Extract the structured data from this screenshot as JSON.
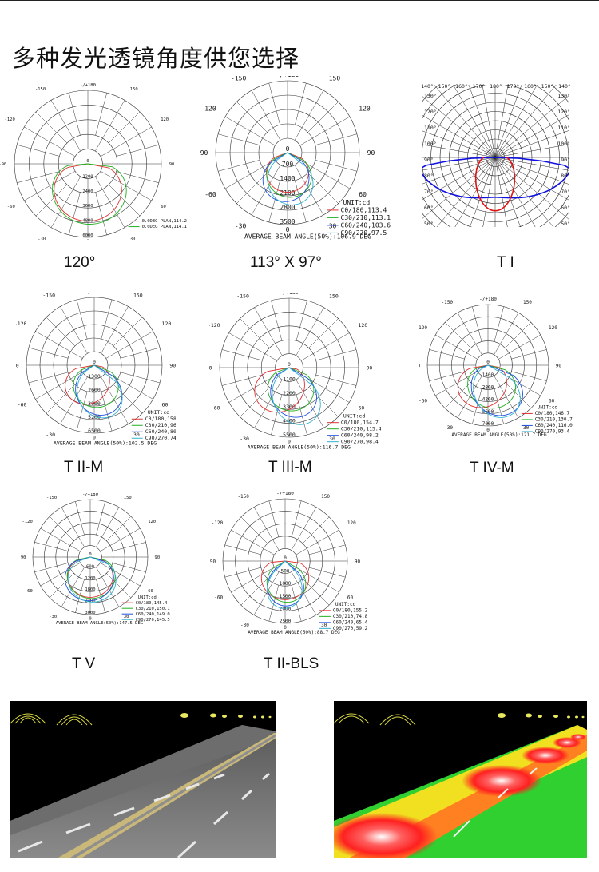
{
  "page": {
    "title": "多种发光透镜角度供您选择"
  },
  "common_angles": {
    "top": "-/+180",
    "l150": "-150",
    "r150": "150",
    "l120": "-120",
    "r120": "120",
    "l90": "-90",
    "r90": "90",
    "l60": "-60",
    "r60": "60",
    "l30": "-30",
    "r30": "30",
    "bottom": "0"
  },
  "diagrams": [
    {
      "caption": "120°",
      "unit": "",
      "rings": [
        "1200",
        "2400",
        "3600",
        "4800",
        "6000"
      ],
      "legend": [
        "0.0DEG PLAN,114.2",
        "0.0DEG PLAN,114.1"
      ],
      "beam_angle": "",
      "colors": [
        "#e03030",
        "#20b020"
      ]
    },
    {
      "caption": "113° X 97°",
      "unit": "UNIT:cd",
      "rings": [
        "700",
        "1400",
        "2100",
        "2800",
        "3500"
      ],
      "legend": [
        "C0/180,113.4",
        "C30/210,113.1",
        "C60/240,103.6",
        "C90/270,97.5"
      ],
      "beam_angle": "AVERAGE BEAM ANGLE(50%):106.9 DEG",
      "colors": [
        "#e03030",
        "#20b020",
        "#2050e0",
        "#30b0d0"
      ]
    },
    {
      "caption": "T I",
      "unit": "",
      "rings": [],
      "legend": [],
      "beam_angle": "",
      "colors": [
        "#e01010",
        "#1010e0"
      ],
      "degree_labels": {
        "top": [
          "140°",
          "150°",
          "160°",
          "170°",
          "180°",
          "170°",
          "160°",
          "150°",
          "140°"
        ],
        "left": [
          "130°",
          "120°",
          "110°",
          "100°",
          "90°",
          "80°",
          "70°",
          "60°",
          "50°"
        ],
        "right": [
          "130°",
          "120°",
          "110°",
          "100°",
          "90°",
          "80°",
          "70°",
          "60°",
          "50°"
        ]
      }
    },
    {
      "caption": "T II-M",
      "unit": "UNIT:cd",
      "rings": [
        "1300",
        "2600",
        "3900",
        "5200",
        "6500"
      ],
      "legend": [
        "C0/180,158.2",
        "C30/210,96.9",
        "C60/240,80.6",
        "C90/270,74.5"
      ],
      "beam_angle": "AVERAGE BEAM ANGLE(50%):102.5 DEG",
      "colors": [
        "#e03030",
        "#20b020",
        "#2050e0",
        "#30b0d0"
      ]
    },
    {
      "caption": "T III-M",
      "unit": "UNIT:cd",
      "rings": [
        "1100",
        "2200",
        "3300",
        "4400",
        "5500"
      ],
      "legend": [
        "C0/180,154.7",
        "C30/210,115.4",
        "C60/240,98.2",
        "C90/270,98.4"
      ],
      "beam_angle": "AVERAGE BEAM ANGLE(50%):116.7 DEG",
      "colors": [
        "#e03030",
        "#20b020",
        "#2050e0",
        "#30b0d0"
      ]
    },
    {
      "caption": "T IV-M",
      "unit": "UNIT:cd",
      "rings": [
        "1400",
        "2800",
        "4200",
        "5600",
        "7000"
      ],
      "legend": [
        "C0/180,146.7",
        "C30/210,130.7",
        "C60/240,116.0",
        "C90/270,93.4"
      ],
      "beam_angle": "AVERAGE BEAM ANGLE(50%):121.7 DEG",
      "colors": [
        "#e03030",
        "#20b020",
        "#2050e0",
        "#30b0d0"
      ]
    },
    {
      "caption": "T V",
      "unit": "UNIT:cd",
      "rings": [
        "600",
        "1200",
        "1800",
        "2400",
        "3000"
      ],
      "legend": [
        "C0/180,145.4",
        "C30/210,150.1",
        "C60/240,149.0",
        "C90/270,145.5"
      ],
      "beam_angle": "AVERAGE BEAM ANGLE(50%):147.5 DEG",
      "colors": [
        "#e03030",
        "#20b020",
        "#2050e0",
        "#30b0d0"
      ]
    },
    {
      "caption": "T II-BLS",
      "unit": "UNIT:cd",
      "rings": [
        "500",
        "1000",
        "1500",
        "2000",
        "2500"
      ],
      "legend": [
        "C0/180,155.2",
        "C30/210,74.8",
        "C60/240,65.4",
        "C90/270,59.2"
      ],
      "beam_angle": "AVERAGE BEAM ANGLE(50%):88.7 DEG",
      "colors": [
        "#e03030",
        "#20b020",
        "#2050e0",
        "#30b0d0"
      ]
    }
  ],
  "photos": {
    "road_render": "road-simulation-gray",
    "road_heatmap": "road-illuminance-heatmap"
  }
}
